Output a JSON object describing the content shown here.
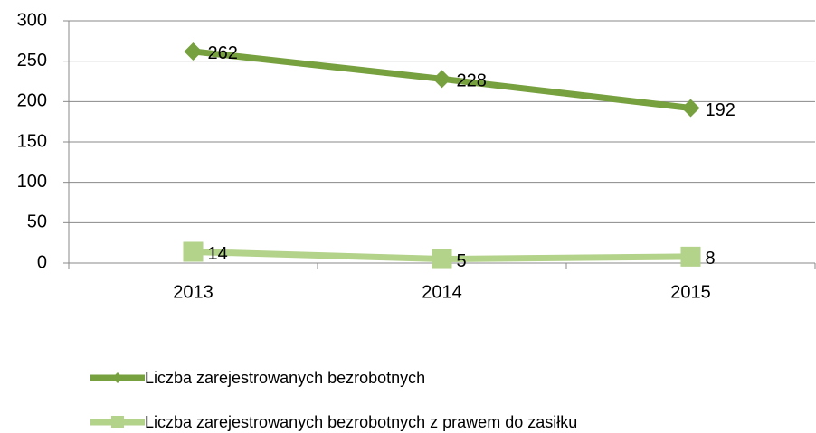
{
  "chart_data": {
    "type": "line",
    "categories": [
      "2013",
      "2014",
      "2015"
    ],
    "series": [
      {
        "name": "Liczba zarejestrowanych bezrobotnych",
        "color": "#77a03f",
        "marker": "diamond",
        "values": [
          262,
          228,
          192
        ]
      },
      {
        "name": "Liczba zarejestrowanych bezrobotnych z prawem do zasiłku",
        "color": "#b3d28a",
        "marker": "square",
        "values": [
          14,
          5,
          8
        ]
      }
    ],
    "ylim": [
      0,
      300
    ],
    "yticks": [
      0,
      50,
      100,
      150,
      200,
      250,
      300
    ],
    "grid": true,
    "legend": "bottom"
  }
}
